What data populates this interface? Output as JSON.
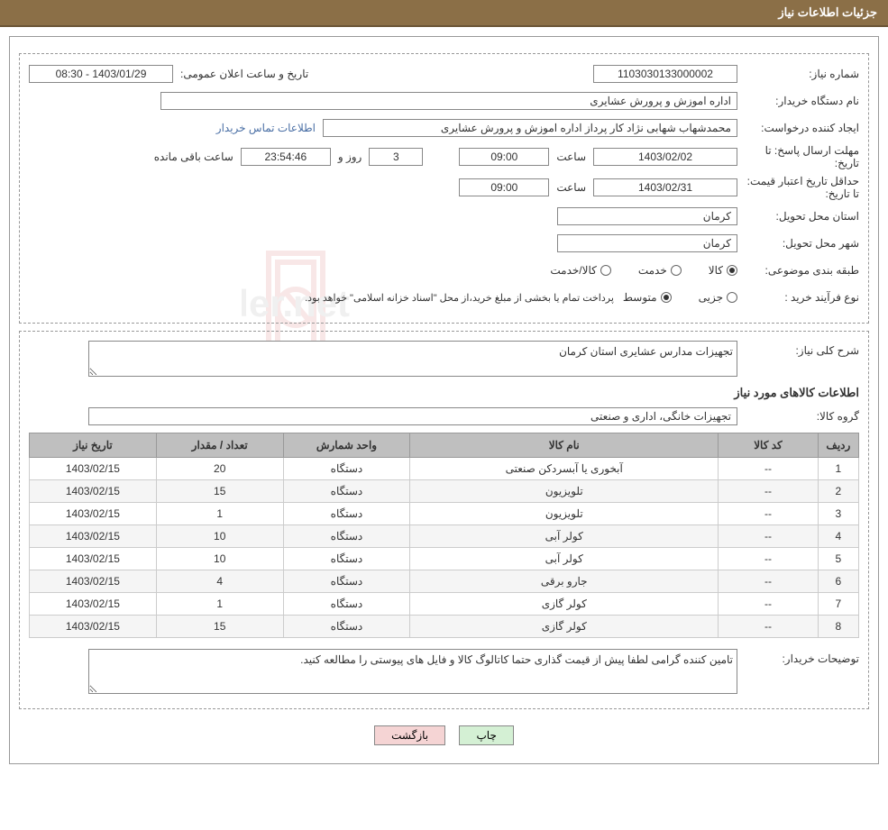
{
  "header": {
    "title": "جزئیات اطلاعات نیاز"
  },
  "fields": {
    "need_number_label": "شماره نیاز:",
    "need_number": "1103030133000002",
    "announce_label": "تاریخ و ساعت اعلان عمومی:",
    "announce_value": "1403/01/29 - 08:30",
    "buyer_org_label": "نام دستگاه خریدار:",
    "buyer_org": "اداره اموزش و پرورش عشایری",
    "requester_label": "ایجاد کننده درخواست:",
    "requester": "محمدشهاب شهابی نژاد کار پرداز اداره اموزش و پرورش عشایری",
    "contact_link": "اطلاعات تماس خریدار",
    "deadline_label": "مهلت ارسال پاسخ: تا تاریخ:",
    "deadline_date": "1403/02/02",
    "time_label": "ساعت",
    "deadline_time": "09:00",
    "days_value": "3",
    "days_and": "روز و",
    "countdown": "23:54:46",
    "remaining": "ساعت باقی مانده",
    "price_validity_label": "حداقل تاریخ اعتبار قیمت: تا تاریخ:",
    "price_validity_date": "1403/02/31",
    "price_validity_time": "09:00",
    "delivery_province_label": "استان محل تحویل:",
    "delivery_province": "کرمان",
    "delivery_city_label": "شهر محل تحویل:",
    "delivery_city": "کرمان",
    "category_label": "طبقه بندی موضوعی:",
    "cat_goods": "کالا",
    "cat_service": "خدمت",
    "cat_goods_service": "کالا/خدمت",
    "purchase_type_label": "نوع فرآیند خرید :",
    "pt_partial": "جزیی",
    "pt_medium": "متوسط",
    "payment_note": "پرداخت تمام یا بخشی از مبلغ خرید،از محل \"اسناد خزانه اسلامی\" خواهد بود."
  },
  "need": {
    "desc_label": "شرح کلی نیاز:",
    "desc": "تجهیزات مدارس عشایری استان کرمان",
    "items_title": "اطلاعات کالاهای مورد نیاز",
    "group_label": "گروه کالا:",
    "group": "تجهیزات خانگی، اداری و صنعتی"
  },
  "table": {
    "columns": [
      "ردیف",
      "کد کالا",
      "نام کالا",
      "واحد شمارش",
      "تعداد / مقدار",
      "تاریخ نیاز"
    ],
    "rows": [
      [
        "1",
        "--",
        "آبخوری یا آبسردکن صنعتی",
        "دستگاه",
        "20",
        "1403/02/15"
      ],
      [
        "2",
        "--",
        "تلویزیون",
        "دستگاه",
        "15",
        "1403/02/15"
      ],
      [
        "3",
        "--",
        "تلویزیون",
        "دستگاه",
        "1",
        "1403/02/15"
      ],
      [
        "4",
        "--",
        "کولر آبی",
        "دستگاه",
        "10",
        "1403/02/15"
      ],
      [
        "5",
        "--",
        "کولر آبی",
        "دستگاه",
        "10",
        "1403/02/15"
      ],
      [
        "6",
        "--",
        "جارو برقی",
        "دستگاه",
        "4",
        "1403/02/15"
      ],
      [
        "7",
        "--",
        "کولر گازی",
        "دستگاه",
        "1",
        "1403/02/15"
      ],
      [
        "8",
        "--",
        "کولر گازی",
        "دستگاه",
        "15",
        "1403/02/15"
      ]
    ]
  },
  "buyer_note": {
    "label": "توضیحات خریدار:",
    "text": "تامین کننده گرامی لطفا پیش از قیمت گذاری حتما کاتالوگ کالا و فایل های پیوستی را مطالعه کنید."
  },
  "buttons": {
    "print": "چاپ",
    "back": "بازگشت"
  },
  "colors": {
    "header_bg": "#8b6f47",
    "table_header_bg": "#bfbfbf",
    "btn_print_bg": "#d4f0d4",
    "btn_back_bg": "#f5d4d4"
  }
}
